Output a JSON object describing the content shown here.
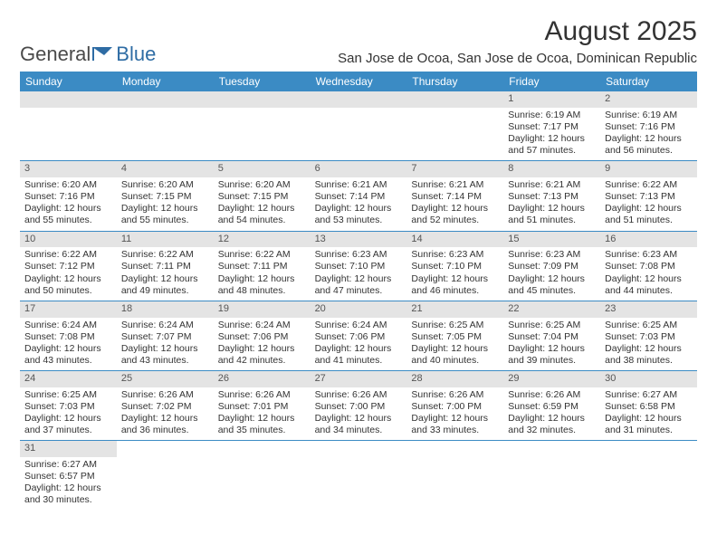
{
  "logo": {
    "text1": "General",
    "text2": "Blue"
  },
  "title": "August 2025",
  "location": "San Jose de Ocoa, San Jose de Ocoa, Dominican Republic",
  "colors": {
    "header_bg": "#3b8bc4",
    "header_text": "#ffffff",
    "daynum_bg": "#e4e4e4",
    "cell_border": "#3b8bc4",
    "body_text": "#333333"
  },
  "weekdays": [
    "Sunday",
    "Monday",
    "Tuesday",
    "Wednesday",
    "Thursday",
    "Friday",
    "Saturday"
  ],
  "weeks": [
    [
      null,
      null,
      null,
      null,
      null,
      {
        "n": "1",
        "sunrise": "Sunrise: 6:19 AM",
        "sunset": "Sunset: 7:17 PM",
        "daylight": "Daylight: 12 hours and 57 minutes."
      },
      {
        "n": "2",
        "sunrise": "Sunrise: 6:19 AM",
        "sunset": "Sunset: 7:16 PM",
        "daylight": "Daylight: 12 hours and 56 minutes."
      }
    ],
    [
      {
        "n": "3",
        "sunrise": "Sunrise: 6:20 AM",
        "sunset": "Sunset: 7:16 PM",
        "daylight": "Daylight: 12 hours and 55 minutes."
      },
      {
        "n": "4",
        "sunrise": "Sunrise: 6:20 AM",
        "sunset": "Sunset: 7:15 PM",
        "daylight": "Daylight: 12 hours and 55 minutes."
      },
      {
        "n": "5",
        "sunrise": "Sunrise: 6:20 AM",
        "sunset": "Sunset: 7:15 PM",
        "daylight": "Daylight: 12 hours and 54 minutes."
      },
      {
        "n": "6",
        "sunrise": "Sunrise: 6:21 AM",
        "sunset": "Sunset: 7:14 PM",
        "daylight": "Daylight: 12 hours and 53 minutes."
      },
      {
        "n": "7",
        "sunrise": "Sunrise: 6:21 AM",
        "sunset": "Sunset: 7:14 PM",
        "daylight": "Daylight: 12 hours and 52 minutes."
      },
      {
        "n": "8",
        "sunrise": "Sunrise: 6:21 AM",
        "sunset": "Sunset: 7:13 PM",
        "daylight": "Daylight: 12 hours and 51 minutes."
      },
      {
        "n": "9",
        "sunrise": "Sunrise: 6:22 AM",
        "sunset": "Sunset: 7:13 PM",
        "daylight": "Daylight: 12 hours and 51 minutes."
      }
    ],
    [
      {
        "n": "10",
        "sunrise": "Sunrise: 6:22 AM",
        "sunset": "Sunset: 7:12 PM",
        "daylight": "Daylight: 12 hours and 50 minutes."
      },
      {
        "n": "11",
        "sunrise": "Sunrise: 6:22 AM",
        "sunset": "Sunset: 7:11 PM",
        "daylight": "Daylight: 12 hours and 49 minutes."
      },
      {
        "n": "12",
        "sunrise": "Sunrise: 6:22 AM",
        "sunset": "Sunset: 7:11 PM",
        "daylight": "Daylight: 12 hours and 48 minutes."
      },
      {
        "n": "13",
        "sunrise": "Sunrise: 6:23 AM",
        "sunset": "Sunset: 7:10 PM",
        "daylight": "Daylight: 12 hours and 47 minutes."
      },
      {
        "n": "14",
        "sunrise": "Sunrise: 6:23 AM",
        "sunset": "Sunset: 7:10 PM",
        "daylight": "Daylight: 12 hours and 46 minutes."
      },
      {
        "n": "15",
        "sunrise": "Sunrise: 6:23 AM",
        "sunset": "Sunset: 7:09 PM",
        "daylight": "Daylight: 12 hours and 45 minutes."
      },
      {
        "n": "16",
        "sunrise": "Sunrise: 6:23 AM",
        "sunset": "Sunset: 7:08 PM",
        "daylight": "Daylight: 12 hours and 44 minutes."
      }
    ],
    [
      {
        "n": "17",
        "sunrise": "Sunrise: 6:24 AM",
        "sunset": "Sunset: 7:08 PM",
        "daylight": "Daylight: 12 hours and 43 minutes."
      },
      {
        "n": "18",
        "sunrise": "Sunrise: 6:24 AM",
        "sunset": "Sunset: 7:07 PM",
        "daylight": "Daylight: 12 hours and 43 minutes."
      },
      {
        "n": "19",
        "sunrise": "Sunrise: 6:24 AM",
        "sunset": "Sunset: 7:06 PM",
        "daylight": "Daylight: 12 hours and 42 minutes."
      },
      {
        "n": "20",
        "sunrise": "Sunrise: 6:24 AM",
        "sunset": "Sunset: 7:06 PM",
        "daylight": "Daylight: 12 hours and 41 minutes."
      },
      {
        "n": "21",
        "sunrise": "Sunrise: 6:25 AM",
        "sunset": "Sunset: 7:05 PM",
        "daylight": "Daylight: 12 hours and 40 minutes."
      },
      {
        "n": "22",
        "sunrise": "Sunrise: 6:25 AM",
        "sunset": "Sunset: 7:04 PM",
        "daylight": "Daylight: 12 hours and 39 minutes."
      },
      {
        "n": "23",
        "sunrise": "Sunrise: 6:25 AM",
        "sunset": "Sunset: 7:03 PM",
        "daylight": "Daylight: 12 hours and 38 minutes."
      }
    ],
    [
      {
        "n": "24",
        "sunrise": "Sunrise: 6:25 AM",
        "sunset": "Sunset: 7:03 PM",
        "daylight": "Daylight: 12 hours and 37 minutes."
      },
      {
        "n": "25",
        "sunrise": "Sunrise: 6:26 AM",
        "sunset": "Sunset: 7:02 PM",
        "daylight": "Daylight: 12 hours and 36 minutes."
      },
      {
        "n": "26",
        "sunrise": "Sunrise: 6:26 AM",
        "sunset": "Sunset: 7:01 PM",
        "daylight": "Daylight: 12 hours and 35 minutes."
      },
      {
        "n": "27",
        "sunrise": "Sunrise: 6:26 AM",
        "sunset": "Sunset: 7:00 PM",
        "daylight": "Daylight: 12 hours and 34 minutes."
      },
      {
        "n": "28",
        "sunrise": "Sunrise: 6:26 AM",
        "sunset": "Sunset: 7:00 PM",
        "daylight": "Daylight: 12 hours and 33 minutes."
      },
      {
        "n": "29",
        "sunrise": "Sunrise: 6:26 AM",
        "sunset": "Sunset: 6:59 PM",
        "daylight": "Daylight: 12 hours and 32 minutes."
      },
      {
        "n": "30",
        "sunrise": "Sunrise: 6:27 AM",
        "sunset": "Sunset: 6:58 PM",
        "daylight": "Daylight: 12 hours and 31 minutes."
      }
    ],
    [
      {
        "n": "31",
        "sunrise": "Sunrise: 6:27 AM",
        "sunset": "Sunset: 6:57 PM",
        "daylight": "Daylight: 12 hours and 30 minutes."
      },
      null,
      null,
      null,
      null,
      null,
      null
    ]
  ]
}
